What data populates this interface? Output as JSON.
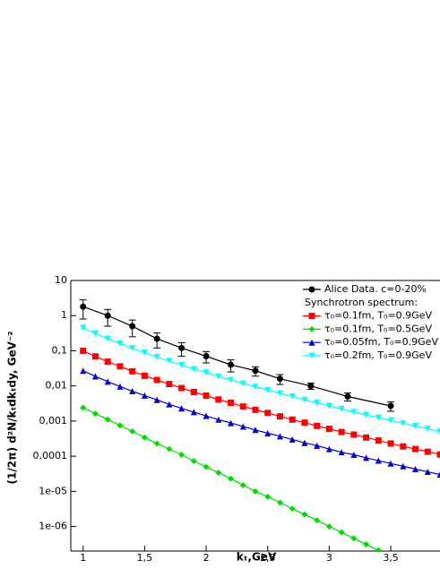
{
  "chart_data": {
    "type": "line",
    "log_y": true,
    "x_label": "kₜ,GeV",
    "y_label": "(1/2π) d²N/kₜdkₜdy, GeV⁻²",
    "legend_heading": "Synchrotron spectrum:",
    "legend_position": "upper right",
    "xlim": [
      0.9,
      3.9
    ],
    "ylim": [
      2e-07,
      10
    ],
    "xticks": [
      1,
      {
        "value": 1.5,
        "label": "1,5"
      },
      2,
      {
        "value": 2.5,
        "label": "2,5"
      },
      3,
      {
        "value": 3.5,
        "label": "3,5"
      }
    ],
    "yticks": [
      10,
      1,
      {
        "value": 0.1,
        "label": "0,1"
      },
      {
        "value": 0.01,
        "label": "0,01"
      },
      {
        "value": 0.001,
        "label": "0,001"
      },
      {
        "value": 0.0001,
        "label": "0,0001"
      },
      {
        "value": 1e-05,
        "label": "1e-05"
      },
      {
        "value": 1e-06,
        "label": "1e-06"
      }
    ],
    "x": [
      1.0,
      1.1,
      1.2,
      1.3,
      1.4,
      1.5,
      1.6,
      1.7,
      1.8,
      1.9,
      2.0,
      2.1,
      2.2,
      2.3,
      2.4,
      2.5,
      2.6,
      2.7,
      2.8,
      2.9,
      3.0,
      3.1,
      3.2,
      3.3,
      3.4,
      3.5,
      3.6,
      3.7,
      3.8,
      3.9
    ],
    "series": [
      {
        "name": "Alice Data. c=0-20%",
        "color": "#000000",
        "marker": "circle",
        "x": [
          1.0,
          1.2,
          1.4,
          1.6,
          1.8,
          2.0,
          2.2,
          2.4,
          2.6,
          2.85,
          3.15,
          3.5
        ],
        "values": [
          1.8,
          1.0,
          0.5,
          0.22,
          0.12,
          0.07,
          0.04,
          0.027,
          0.016,
          0.01,
          0.005,
          0.0027
        ],
        "errors": [
          1.0,
          0.5,
          0.25,
          0.1,
          0.05,
          0.025,
          0.015,
          0.008,
          0.005,
          0.002,
          0.0013,
          0.0008
        ]
      },
      {
        "name": "τ₀=0.1fm, T₀=0.9GeV",
        "color": "#ff0000",
        "marker": "square",
        "values": [
          0.1,
          0.069,
          0.049,
          0.036,
          0.026,
          0.0195,
          0.0148,
          0.0113,
          0.0087,
          0.0067,
          0.0053,
          0.0041,
          0.0033,
          0.0026,
          0.0021,
          0.0017,
          0.00136,
          0.0011,
          0.0009,
          0.00073,
          0.0006,
          0.00049,
          0.00041,
          0.00034,
          0.00028,
          0.00023,
          0.00019,
          0.00016,
          0.000134,
          0.000112
        ]
      },
      {
        "name": "τ₀=0.1fm, T₀=0.5GeV",
        "color": "#00dd00",
        "marker": "diamond",
        "values": [
          0.0024,
          0.00163,
          0.0011,
          0.00075,
          0.00051,
          0.00034,
          0.00023,
          0.00016,
          0.00011,
          7.3e-05,
          5e-05,
          3.4e-05,
          2.3e-05,
          1.5e-05,
          1e-05,
          7e-06,
          4.8e-06,
          3.2e-06,
          2.2e-06,
          1.5e-06,
          1e-06,
          6.8e-07,
          4.6e-07,
          3.1e-07,
          2.1e-07,
          null,
          null,
          null,
          null,
          null
        ]
      },
      {
        "name": "τ₀=0.05fm, T₀=0.9GeV",
        "color": "#0000cc",
        "marker": "triangle",
        "values": [
          0.027,
          0.0187,
          0.0133,
          0.0096,
          0.0071,
          0.0053,
          0.004,
          0.003,
          0.0023,
          0.0018,
          0.0014,
          0.0011,
          0.00088,
          0.0007,
          0.00056,
          0.00045,
          0.00037,
          0.0003,
          0.00024,
          0.0002,
          0.00016,
          0.00013,
          0.00011,
          9e-05,
          7.5e-05,
          6.2e-05,
          5.2e-05,
          4.3e-05,
          3.6e-05,
          3e-05
        ]
      },
      {
        "name": "τ₀=0.2fm, T₀=0.9GeV",
        "color": "#00ffff",
        "marker": "triangle-down",
        "values": [
          0.45,
          0.31,
          0.22,
          0.16,
          0.118,
          0.088,
          0.066,
          0.051,
          0.039,
          0.03,
          0.024,
          0.0186,
          0.0147,
          0.0117,
          0.0094,
          0.0076,
          0.0061,
          0.005,
          0.004,
          0.0033,
          0.0027,
          0.0022,
          0.0018,
          0.0015,
          0.00125,
          0.00104,
          0.00086,
          0.00072,
          0.0006,
          0.0005
        ]
      }
    ]
  }
}
